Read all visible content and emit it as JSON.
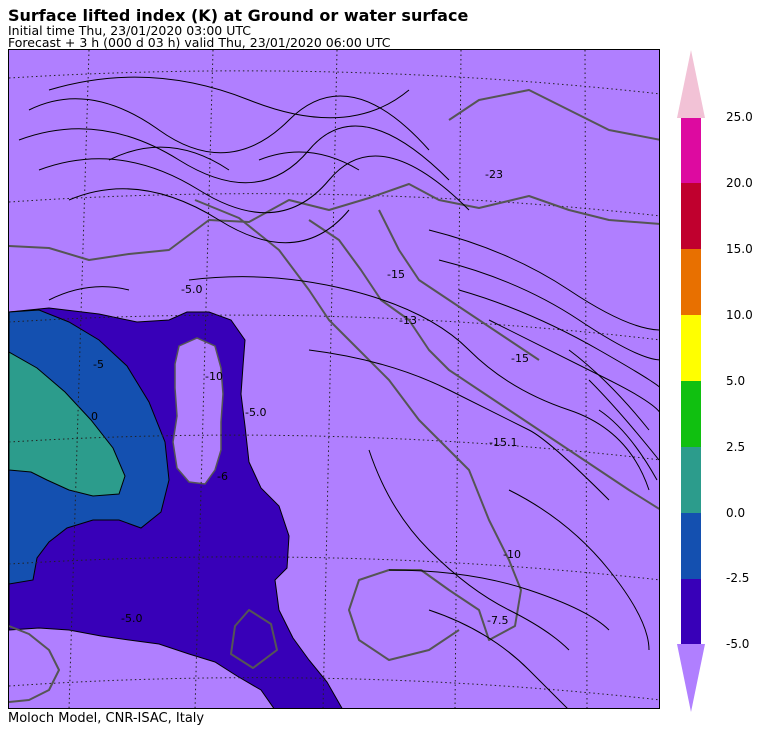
{
  "header": {
    "title": "Surface lifted index (K) at Ground or water surface",
    "initial_time": "Initial time  Thu, 23/01/2020  03:00 UTC",
    "forecast": "Forecast  +   3 h  (000 d 03 h)  valid Thu, 23/01/2020 06:00 UTC"
  },
  "footer": {
    "credit": "Moloch Model, CNR-ISAC, Italy"
  },
  "colorbar": {
    "labels": [
      "25.0",
      "20.0",
      "15.0",
      "10.0",
      "5.0",
      "2.5",
      "0.0",
      "-2.5",
      "-5.0"
    ],
    "colors": {
      "above_25": "#f2c2d6",
      "20_25": "#dd0aa0",
      "15_20": "#c0002e",
      "10_15": "#e87000",
      "5_10": "#ffff00",
      "2.5_5": "#10c010",
      "0_2.5": "#2c9c8c",
      "-2.5_0": "#1450b0",
      "-5_-2.5": "#3800b8",
      "below_-5": "#b07fff"
    }
  },
  "map": {
    "contour_labels": [
      "-5.0",
      "-13",
      "-15",
      "-15",
      "-15.1",
      "-10",
      "-7.5",
      "-23",
      "-5.0",
      "-6",
      "-10",
      "-5",
      "0",
      "-5.0"
    ]
  }
}
